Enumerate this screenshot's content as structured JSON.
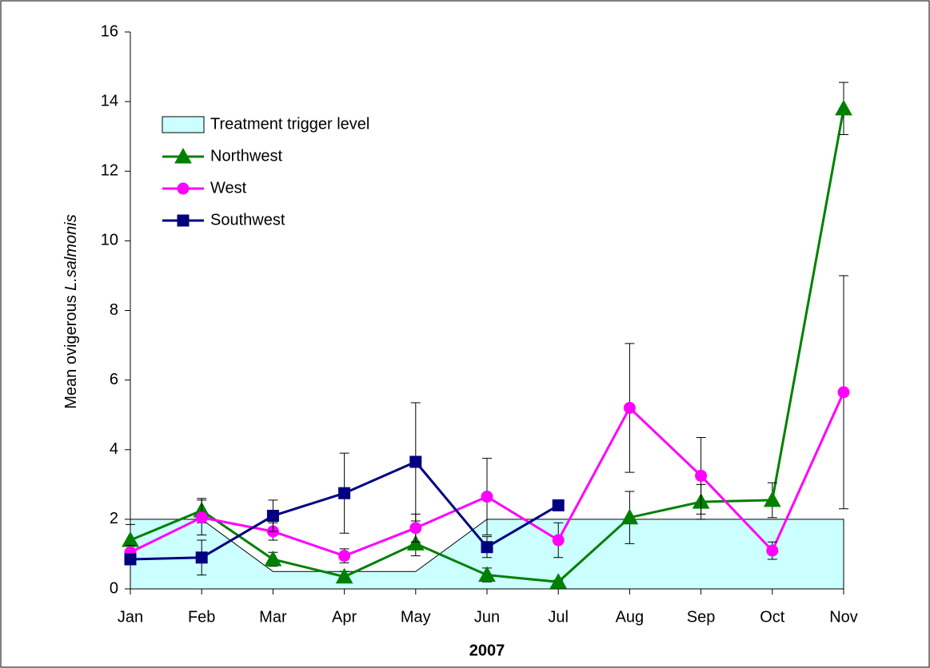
{
  "chart_data": {
    "type": "line",
    "y_label": {
      "text": "Mean ovigerous",
      "italic": "L.salmonis"
    },
    "x_label": "2007",
    "categories": [
      "Jan",
      "Feb",
      "Mar",
      "Apr",
      "May",
      "Jun",
      "Jul",
      "Aug",
      "Sep",
      "Oct",
      "Nov"
    ],
    "ylim": [
      0,
      16
    ],
    "yticks": [
      0,
      2,
      4,
      6,
      8,
      10,
      12,
      14,
      16
    ],
    "legend": "upper-left",
    "series": [
      {
        "name": "Treatment trigger level",
        "kind": "area",
        "color": "#ccffff",
        "values": [
          2,
          2,
          0.5,
          0.5,
          0.5,
          2,
          2,
          2,
          2,
          2,
          2
        ]
      },
      {
        "name": "Northwest",
        "kind": "line",
        "marker": "triangle",
        "color": "#008000",
        "values": [
          1.4,
          2.25,
          0.85,
          0.35,
          1.3,
          0.4,
          0.2,
          2.05,
          2.5,
          2.55,
          13.8
        ],
        "errors": [
          0.45,
          0.35,
          0.2,
          0.15,
          0.35,
          0.2,
          0.05,
          0.75,
          0.5,
          0.5,
          0.75
        ]
      },
      {
        "name": "West",
        "kind": "line",
        "marker": "circle",
        "color": "#ff00ff",
        "values": [
          1.05,
          2.05,
          1.65,
          0.95,
          1.75,
          2.65,
          1.4,
          5.2,
          3.25,
          1.1,
          5.65
        ],
        "errors": [
          0.2,
          0.5,
          0.25,
          0.2,
          0.4,
          1.1,
          0.5,
          1.85,
          1.1,
          0.25,
          3.35
        ]
      },
      {
        "name": "Southwest",
        "kind": "line",
        "marker": "square",
        "color": "#000080",
        "values": [
          0.85,
          0.9,
          2.1,
          2.75,
          3.65,
          1.2,
          2.4,
          null,
          null,
          null,
          null
        ],
        "errors": [
          0.1,
          0.5,
          0.45,
          1.15,
          1.7,
          0.3,
          null,
          null,
          null,
          null,
          null
        ]
      }
    ]
  }
}
